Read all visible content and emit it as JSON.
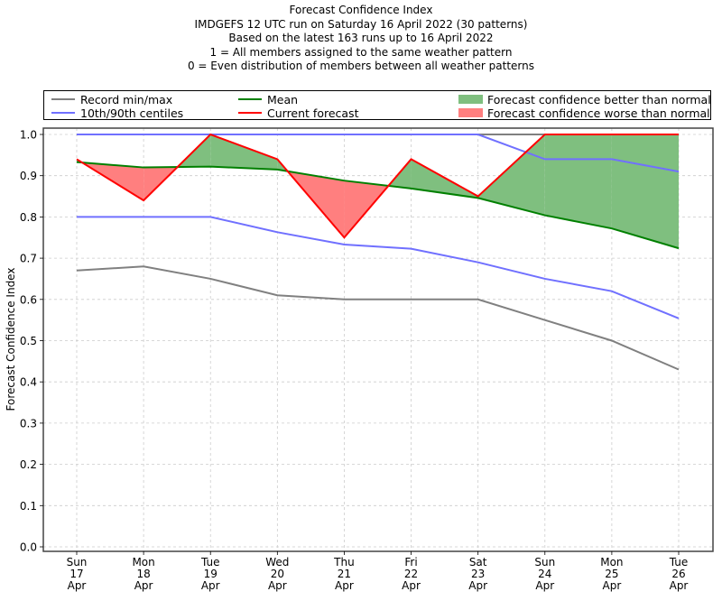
{
  "chart_data": {
    "type": "line",
    "title": "Forecast Confidence Index",
    "subtitles": [
      "IMDGEFS 12 UTC run on Saturday 16 April 2022 (30 patterns)",
      "Based on the latest 163 runs up to 16 April 2022",
      "1 = All members assigned to the same weather pattern",
      "0 = Even distribution of members between all weather patterns"
    ],
    "xlabel": "",
    "ylabel": "Forecast Confidence Index",
    "ylim": [
      0.0,
      1.0
    ],
    "yticks": [
      "0.0",
      "0.1",
      "0.2",
      "0.3",
      "0.4",
      "0.5",
      "0.6",
      "0.7",
      "0.8",
      "0.9",
      "1.0"
    ],
    "grid": true,
    "legend_placement": "top",
    "categories": [
      [
        "Sun",
        "17",
        "Apr"
      ],
      [
        "Mon",
        "18",
        "Apr"
      ],
      [
        "Tue",
        "19",
        "Apr"
      ],
      [
        "Wed",
        "20",
        "Apr"
      ],
      [
        "Thu",
        "21",
        "Apr"
      ],
      [
        "Fri",
        "22",
        "Apr"
      ],
      [
        "Sat",
        "23",
        "Apr"
      ],
      [
        "Sun",
        "24",
        "Apr"
      ],
      [
        "Mon",
        "25",
        "Apr"
      ],
      [
        "Tue",
        "26",
        "Apr"
      ]
    ],
    "series": [
      {
        "name": "Record max",
        "legend": "Record min/max",
        "color": "#808080",
        "values": [
          1.0,
          1.0,
          1.0,
          1.0,
          1.0,
          1.0,
          1.0,
          1.0,
          1.0,
          1.0
        ]
      },
      {
        "name": "Record min",
        "color": "#808080",
        "values": [
          0.67,
          0.68,
          0.65,
          0.61,
          0.6,
          0.6,
          0.6,
          0.55,
          0.5,
          0.43
        ]
      },
      {
        "name": "90th centile",
        "legend": "10th/90th centiles",
        "color": "#7070ff",
        "values": [
          1.0,
          1.0,
          1.0,
          1.0,
          1.0,
          1.0,
          1.0,
          0.94,
          0.94,
          0.91
        ]
      },
      {
        "name": "10th centile",
        "color": "#7070ff",
        "values": [
          0.8,
          0.8,
          0.8,
          0.763,
          0.733,
          0.723,
          0.69,
          0.65,
          0.62,
          0.554
        ]
      },
      {
        "name": "Mean",
        "legend": "Mean",
        "color": "#008000",
        "values": [
          0.933,
          0.92,
          0.922,
          0.915,
          0.888,
          0.869,
          0.846,
          0.804,
          0.772,
          0.724
        ]
      },
      {
        "name": "Current forecast",
        "legend": "Current forecast",
        "color": "#ff0000",
        "values": [
          0.94,
          0.84,
          1.0,
          0.94,
          0.75,
          0.94,
          0.85,
          1.0,
          1.0,
          1.0
        ]
      }
    ],
    "fills": [
      {
        "legend": "Forecast confidence better than normal",
        "color": "#7fbf7f",
        "where": "current > mean"
      },
      {
        "legend": "Forecast confidence worse than normal",
        "color": "#ff7f7f",
        "where": "current < mean"
      }
    ]
  }
}
